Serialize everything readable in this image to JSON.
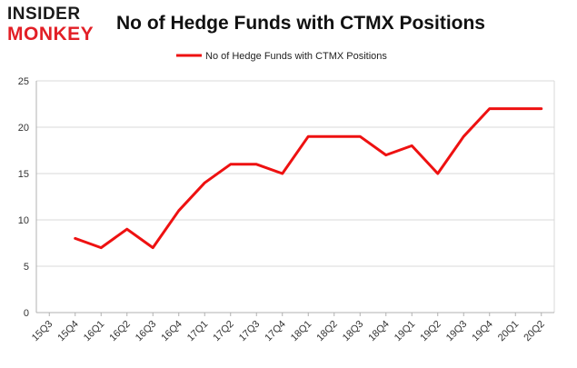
{
  "logo": {
    "line1": "INSIDER",
    "line2": "MONKEY"
  },
  "chart_data": {
    "type": "line",
    "title": "No of Hedge Funds with CTMX Positions",
    "xlabel": "",
    "ylabel": "",
    "categories": [
      "15Q3",
      "15Q4",
      "16Q1",
      "16Q2",
      "16Q3",
      "16Q4",
      "17Q1",
      "17Q2",
      "17Q3",
      "17Q4",
      "18Q1",
      "18Q2",
      "18Q3",
      "18Q4",
      "19Q1",
      "19Q2",
      "19Q3",
      "19Q4",
      "20Q1",
      "20Q2"
    ],
    "series": [
      {
        "name": "No of Hedge Funds with CTMX Positions",
        "color": "#ee1111",
        "values": [
          null,
          8,
          7,
          9,
          7,
          11,
          14,
          16,
          16,
          15,
          19,
          19,
          19,
          17,
          18,
          15,
          19,
          22,
          22,
          22
        ]
      }
    ],
    "ylim": [
      0,
      25
    ],
    "yticks": [
      0,
      5,
      10,
      15,
      20,
      25
    ],
    "grid": true,
    "legend_position": "top-center"
  }
}
